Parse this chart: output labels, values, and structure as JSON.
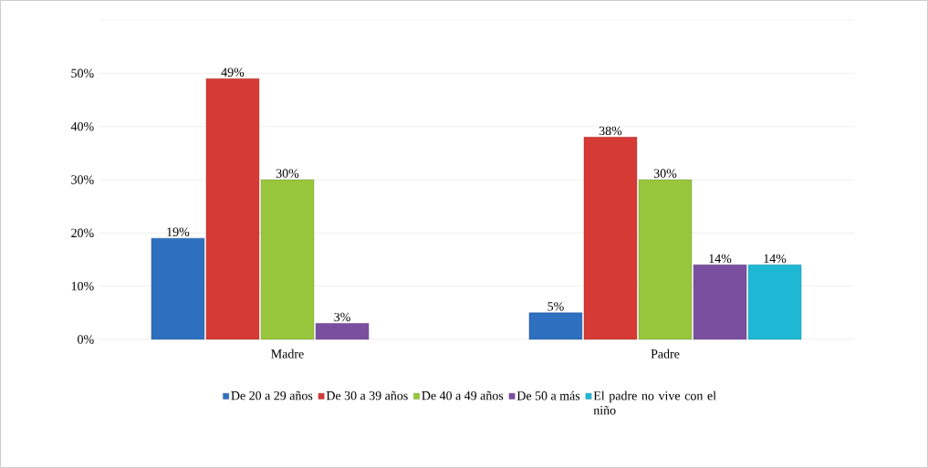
{
  "chart_data": {
    "type": "bar",
    "categories": [
      "Madre",
      "Padre"
    ],
    "series": [
      {
        "name": "De 20 a 29 años",
        "color": "#2e6fc0",
        "values": [
          19,
          5
        ],
        "value_labels": [
          "19%",
          "5%"
        ]
      },
      {
        "name": "De 30 a 39 años",
        "color": "#d63a35",
        "values": [
          49,
          38
        ],
        "value_labels": [
          "49%",
          "38%"
        ]
      },
      {
        "name": "De 40 a 49 años",
        "color": "#98c63c",
        "values": [
          30,
          30
        ],
        "value_labels": [
          "30%",
          "30%"
        ]
      },
      {
        "name": "De 50 a más",
        "color": "#7b4fa0",
        "values": [
          3,
          14
        ],
        "value_labels": [
          "3%",
          "14%"
        ]
      },
      {
        "name": "El padre no vive con el niño",
        "color": "#1eb8d4",
        "values": [
          null,
          14
        ],
        "value_labels": [
          null,
          "14%"
        ]
      }
    ],
    "ylim": [
      0,
      60
    ],
    "yticks": [
      {
        "value": 0,
        "label": "0%"
      },
      {
        "value": 10,
        "label": "10%"
      },
      {
        "value": 20,
        "label": "20%"
      },
      {
        "value": 30,
        "label": "30%"
      },
      {
        "value": 40,
        "label": "40%"
      },
      {
        "value": 50,
        "label": "50%"
      },
      {
        "value": 60,
        "label": null
      }
    ],
    "grid": "y",
    "legend": "bottom"
  }
}
